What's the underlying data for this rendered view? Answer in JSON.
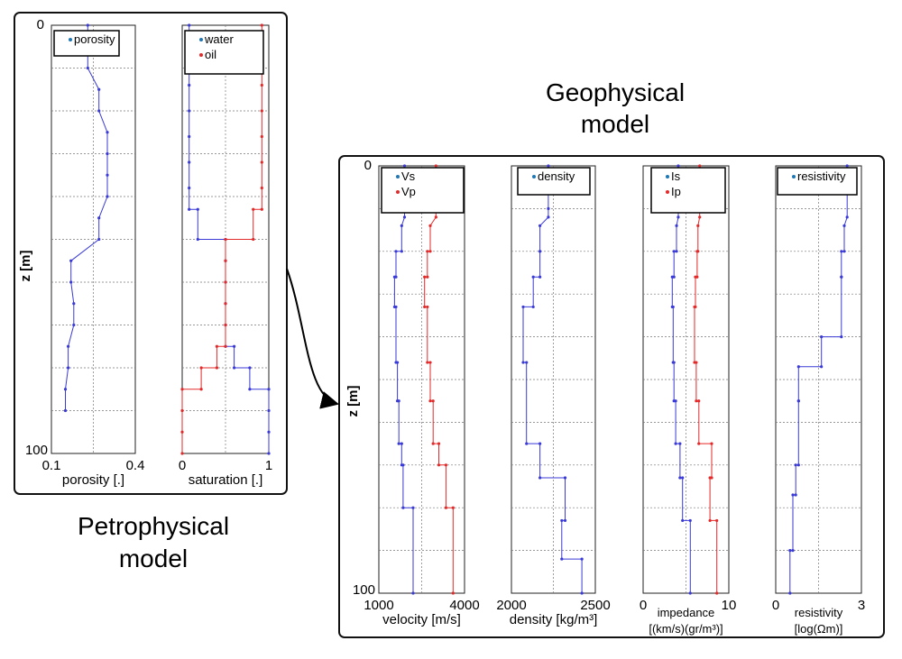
{
  "petro_title": [
    "Petrophysical",
    "model"
  ],
  "geo_title": [
    "Geophysical",
    "model"
  ],
  "colors": {
    "blue": "#3a3ad6",
    "red": "#e32a2a",
    "legend_blue": "#1f77b4",
    "legend_red": "#e32a2a",
    "grid": "#777777",
    "frame": "#222222"
  },
  "chart_data": [
    {
      "type": "line",
      "panel": "porosity",
      "group": "petrophysical",
      "xlim": [
        0.1,
        0.4
      ],
      "ylim": [
        0,
        100
      ],
      "xticks": [
        "0.1",
        "0.4"
      ],
      "yticks": [
        "0",
        "100"
      ],
      "ylabel": "z [m]",
      "xlabel": [
        "porosity [.]"
      ],
      "series": [
        {
          "name": "porosity",
          "color": "blue",
          "x": [
            0.23,
            0.23,
            0.23,
            0.27,
            0.27,
            0.3,
            0.3,
            0.3,
            0.3,
            0.27,
            0.27,
            0.17,
            0.17,
            0.18,
            0.18,
            0.16,
            0.16,
            0.15,
            0.15
          ],
          "z": [
            0,
            5,
            10,
            15,
            20,
            25,
            30,
            35,
            40,
            45,
            50,
            55,
            60,
            65,
            70,
            75,
            80,
            85,
            90
          ]
        }
      ]
    },
    {
      "type": "line",
      "panel": "saturation",
      "group": "petrophysical",
      "xlim": [
        0,
        1
      ],
      "ylim": [
        0,
        100
      ],
      "xticks": [
        "0",
        "1"
      ],
      "yticks": [],
      "ylabel": "",
      "xlabel": [
        "saturation [.]"
      ],
      "series": [
        {
          "name": "water",
          "color": "blue",
          "x": [
            0.08,
            0.08,
            0.08,
            0.08,
            0.08,
            0.08,
            0.08,
            0.08,
            0.08,
            0.18,
            0.18,
            0.5,
            0.5,
            0.5,
            0.5,
            0.5,
            0.5,
            0.6,
            0.6,
            0.78,
            0.78,
            1.0,
            1.0,
            1.0,
            1.0
          ],
          "z": [
            0,
            2,
            8,
            14,
            20,
            26,
            32,
            38,
            43,
            43,
            50,
            50,
            55,
            60,
            65,
            70,
            75,
            75,
            80,
            80,
            85,
            85,
            90,
            95,
            100
          ]
        },
        {
          "name": "oil",
          "color": "red",
          "x": [
            0.92,
            0.92,
            0.92,
            0.92,
            0.92,
            0.92,
            0.92,
            0.92,
            0.92,
            0.82,
            0.82,
            0.5,
            0.5,
            0.5,
            0.5,
            0.5,
            0.5,
            0.4,
            0.4,
            0.22,
            0.22,
            0.0,
            0.0,
            0.0,
            0.0
          ],
          "z": [
            0,
            2,
            8,
            14,
            20,
            26,
            32,
            38,
            43,
            43,
            50,
            50,
            55,
            60,
            65,
            70,
            75,
            75,
            80,
            80,
            85,
            85,
            90,
            95,
            100
          ]
        }
      ]
    },
    {
      "type": "line",
      "panel": "velocity",
      "group": "geophysical",
      "xlim": [
        1000,
        4000
      ],
      "ylim": [
        0,
        100
      ],
      "xticks": [
        "1000",
        "4000"
      ],
      "yticks": [
        "0",
        "100"
      ],
      "ylabel": "z [m]",
      "xlabel": [
        "velocity [m/s]"
      ],
      "series": [
        {
          "name": "Vs",
          "color": "blue",
          "x": [
            1900,
            1900,
            1900,
            1800,
            1800,
            1600,
            1600,
            1550,
            1550,
            1600,
            1600,
            1650,
            1650,
            1700,
            1700,
            1800,
            1800,
            1850,
            1850,
            2200,
            2200
          ],
          "z": [
            0,
            10,
            12,
            14,
            20,
            20,
            26,
            26,
            33,
            33,
            46,
            46,
            55,
            55,
            65,
            65,
            70,
            70,
            80,
            80,
            100
          ]
        },
        {
          "name": "Vp",
          "color": "red",
          "x": [
            3000,
            3000,
            3000,
            2800,
            2800,
            2700,
            2700,
            2600,
            2600,
            2700,
            2700,
            2800,
            2800,
            2900,
            2900,
            3100,
            3100,
            3350,
            3350,
            3600,
            3600
          ],
          "z": [
            0,
            10,
            12,
            14,
            20,
            20,
            26,
            26,
            33,
            33,
            46,
            46,
            55,
            55,
            65,
            65,
            70,
            70,
            80,
            80,
            100
          ]
        }
      ]
    },
    {
      "type": "line",
      "panel": "density",
      "group": "geophysical",
      "xlim": [
        2000,
        2500
      ],
      "ylim": [
        0,
        100
      ],
      "xticks": [
        "2000",
        "2500"
      ],
      "yticks": [],
      "ylabel": "",
      "xlabel": [
        "density [kg/m³]"
      ],
      "series": [
        {
          "name": "density",
          "color": "blue",
          "x": [
            2220,
            2220,
            2220,
            2170,
            2170,
            2170,
            2170,
            2130,
            2130,
            2070,
            2070,
            2090,
            2090,
            2170,
            2170,
            2320,
            2320,
            2300,
            2300,
            2420,
            2420
          ],
          "z": [
            0,
            10,
            12,
            14,
            20,
            20,
            26,
            26,
            33,
            33,
            46,
            46,
            65,
            65,
            73,
            73,
            83,
            83,
            92,
            92,
            100
          ]
        }
      ]
    },
    {
      "type": "line",
      "panel": "impedance",
      "group": "geophysical",
      "xlim": [
        0,
        10
      ],
      "ylim": [
        0,
        100
      ],
      "xticks": [
        "0",
        "10"
      ],
      "yticks": [],
      "ylabel": "",
      "xlabel": [
        "impedance",
        "[(km/s)(gr/m³)]"
      ],
      "series": [
        {
          "name": "Is",
          "color": "blue",
          "x": [
            4.1,
            4.1,
            4.1,
            3.9,
            3.9,
            3.6,
            3.6,
            3.4,
            3.4,
            3.5,
            3.5,
            3.6,
            3.6,
            3.8,
            3.8,
            4.3,
            4.3,
            4.6,
            4.6,
            5.5,
            5.5
          ],
          "z": [
            0,
            10,
            12,
            14,
            20,
            20,
            26,
            26,
            33,
            33,
            46,
            46,
            55,
            55,
            65,
            65,
            73,
            73,
            83,
            83,
            100
          ]
        },
        {
          "name": "Ip",
          "color": "red",
          "x": [
            6.6,
            6.6,
            6.6,
            6.4,
            6.4,
            6.3,
            6.3,
            6.1,
            6.1,
            6.0,
            6.0,
            6.2,
            6.2,
            6.5,
            6.5,
            8.0,
            8.0,
            7.8,
            7.8,
            8.6,
            8.6
          ],
          "z": [
            0,
            10,
            12,
            14,
            20,
            20,
            26,
            26,
            33,
            33,
            46,
            46,
            55,
            55,
            65,
            65,
            73,
            73,
            83,
            83,
            100
          ]
        }
      ]
    },
    {
      "type": "line",
      "panel": "resistivity",
      "group": "geophysical",
      "xlim": [
        0,
        3
      ],
      "ylim": [
        0,
        100
      ],
      "xticks": [
        "0",
        "3"
      ],
      "yticks": [],
      "ylabel": "",
      "xlabel": [
        "resistivity",
        "[log(Ωm)]"
      ],
      "series": [
        {
          "name": "resistivity",
          "color": "blue",
          "x": [
            2.5,
            2.5,
            2.5,
            2.4,
            2.4,
            2.3,
            2.3,
            2.3,
            2.3,
            1.6,
            1.6,
            0.8,
            0.8,
            0.8,
            0.8,
            0.7,
            0.7,
            0.6,
            0.6,
            0.5,
            0.5
          ],
          "z": [
            0,
            5,
            12,
            14,
            20,
            20,
            26,
            26,
            40,
            40,
            47,
            47,
            55,
            55,
            70,
            70,
            77,
            77,
            90,
            90,
            100
          ]
        }
      ]
    }
  ]
}
